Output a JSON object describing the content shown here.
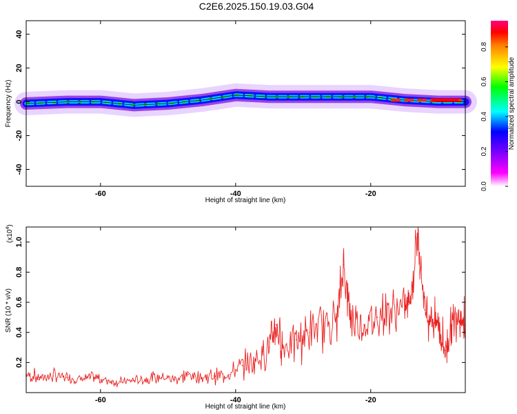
{
  "title": "C2E6.2025.150.19.03.G04",
  "panels": {
    "spectrogram": {
      "ylabel": "Frequency (Hz)",
      "xlabel": "Height of straight line (km)",
      "colorbar_label": "Normalized spectral amplitude"
    },
    "snr": {
      "ylabel": "SNR (10 * v/v)",
      "ylabel_exponent": "(x10",
      "ylabel_exponent_power": "4",
      "ylabel_exponent_close": ")",
      "xlabel": "Height of straight line (km)"
    }
  },
  "chart_data": [
    {
      "type": "heatmap",
      "xlabel": "Height of straight line (km)",
      "ylabel": "Frequency (Hz)",
      "xlim": [
        -71,
        -6
      ],
      "ylim": [
        -50,
        48
      ],
      "x_ticks": [
        -60,
        -40,
        -20
      ],
      "y_ticks": [
        -40,
        -20,
        0,
        20,
        40
      ],
      "colorbar": {
        "label": "Normalized spectral amplitude",
        "range": [
          0,
          0.95
        ],
        "ticks": [
          0.0,
          0.2,
          0.4,
          0.6,
          0.8
        ],
        "colormap": [
          "#ffffff",
          "#ff00ff",
          "#8000ff",
          "#0000ff",
          "#00ffff",
          "#00ff00",
          "#ffff00",
          "#ff8000",
          "#ff0000"
        ]
      },
      "ridge": {
        "description_free": true,
        "points": [
          [
            -71,
            -1
          ],
          [
            -65,
            0
          ],
          [
            -60,
            0
          ],
          [
            -55,
            -2
          ],
          [
            -50,
            -1
          ],
          [
            -45,
            1
          ],
          [
            -40,
            4
          ],
          [
            -35,
            3
          ],
          [
            -30,
            3
          ],
          [
            -25,
            3
          ],
          [
            -20,
            3
          ],
          [
            -15,
            1
          ],
          [
            -10,
            0
          ],
          [
            -6,
            0
          ]
        ]
      }
    },
    {
      "type": "line",
      "xlabel": "Height of straight line (km)",
      "ylabel": "SNR (10 * v/v)",
      "y_multiplier": "x10^4",
      "xlim": [
        -71,
        -6
      ],
      "ylim": [
        0,
        1.1
      ],
      "x_ticks": [
        -60,
        -40,
        -20
      ],
      "y_ticks": [
        0.2,
        0.4,
        0.6,
        0.8,
        1.0
      ],
      "series": [
        {
          "color": "#e8201f",
          "x": [
            -71,
            -69,
            -67,
            -65,
            -63,
            -61,
            -59,
            -57,
            -55,
            -53,
            -51,
            -49,
            -47,
            -45,
            -43,
            -41,
            -39,
            -37,
            -35,
            -34,
            -33,
            -31,
            -29,
            -27,
            -25,
            -24,
            -23,
            -21,
            -19,
            -17,
            -15,
            -14,
            -13,
            -12,
            -11,
            -10,
            -9,
            -8,
            -7,
            -6
          ],
          "values": [
            0.12,
            0.1,
            0.11,
            0.1,
            0.09,
            0.1,
            0.08,
            0.07,
            0.08,
            0.09,
            0.1,
            0.09,
            0.12,
            0.1,
            0.11,
            0.12,
            0.18,
            0.22,
            0.3,
            0.45,
            0.3,
            0.35,
            0.4,
            0.45,
            0.5,
            0.85,
            0.5,
            0.45,
            0.5,
            0.55,
            0.55,
            0.65,
            1.08,
            0.55,
            0.5,
            0.45,
            0.28,
            0.45,
            0.55,
            0.45
          ]
        }
      ]
    }
  ]
}
